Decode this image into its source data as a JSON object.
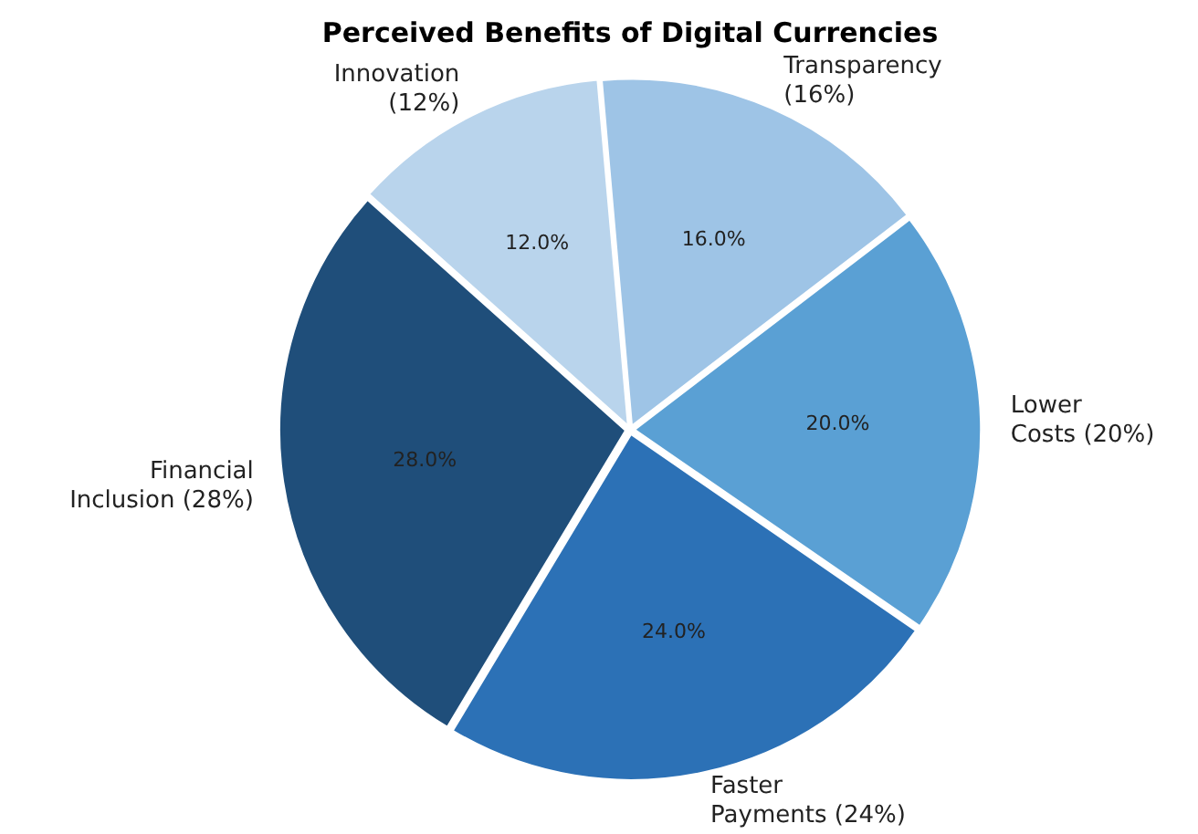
{
  "chart_data": {
    "type": "pie",
    "title": "Perceived Benefits of Digital Currencies",
    "categories": [
      "Transparency\n(16%)",
      "Lower\nCosts (20%)",
      "Faster\nPayments (24%)",
      "Financial\nInclusion (28%)",
      "Innovation\n(12%)"
    ],
    "values": [
      16,
      20,
      24,
      28,
      12
    ],
    "value_labels": [
      "16.0%",
      "20.0%",
      "24.0%",
      "28.0%",
      "12.0%"
    ],
    "colors": [
      "#9ec4e6",
      "#5aa0d4",
      "#2c71b6",
      "#1f4e7a",
      "#b9d4ec"
    ],
    "legend": false
  }
}
